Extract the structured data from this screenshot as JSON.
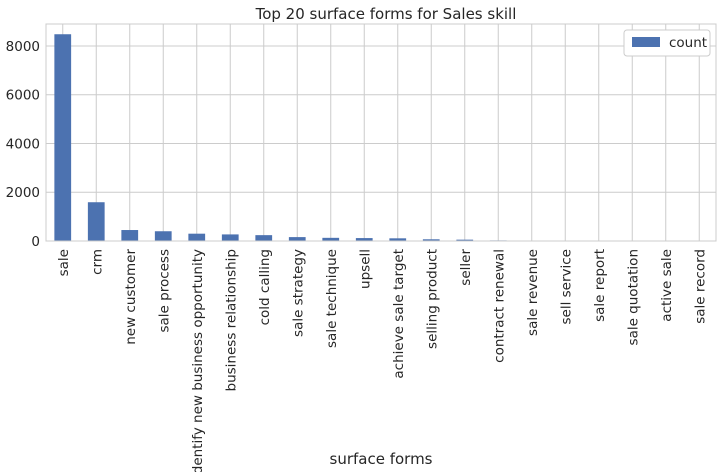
{
  "chart_data": {
    "type": "bar",
    "title": "Top 20 surface forms for Sales skill",
    "xlabel": "surface forms",
    "ylabel": "",
    "categories": [
      "sale",
      "crm",
      "new customer",
      "sale process",
      "identify new business opportunity",
      "business relationship",
      "cold calling",
      "sale strategy",
      "sale technique",
      "upsell",
      "achieve sale target",
      "selling product",
      "seller",
      "contract renewal",
      "sale revenue",
      "sell service",
      "sale report",
      "sale quotation",
      "active sale",
      "sale record"
    ],
    "series": [
      {
        "name": "count",
        "color": "#4c72b0",
        "values": [
          8480,
          1590,
          450,
          400,
          300,
          270,
          240,
          160,
          130,
          120,
          110,
          70,
          55,
          25,
          20,
          15,
          12,
          10,
          8,
          5
        ]
      }
    ],
    "yticks": [
      0,
      2000,
      4000,
      6000,
      8000
    ],
    "ylim": [
      0,
      8900
    ],
    "grid": true,
    "legend_position": "top-right"
  }
}
